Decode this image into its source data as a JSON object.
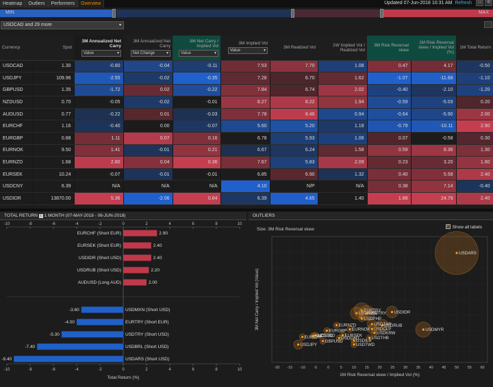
{
  "tabs": [
    {
      "label": "Heatmap"
    },
    {
      "label": "Outliers"
    },
    {
      "label": "Performers"
    },
    {
      "label": "Overview"
    }
  ],
  "updated": {
    "text": "Updated 07-Jun-2018 10:31 AM",
    "refresh": "Refresh"
  },
  "slider": {
    "min": "MIN",
    "max": "MAX"
  },
  "selector": {
    "label": "USDCAD and 29 more"
  },
  "columns": [
    {
      "label": "Currency"
    },
    {
      "label": "Spot"
    },
    {
      "label": "3M Annualized Net Carry",
      "dd": "Value"
    },
    {
      "label": "3M Annualized Net Carry",
      "dd": "Net Change"
    },
    {
      "label": "3M Net Carry / Implied Vol",
      "dd": "Value"
    },
    {
      "label": "3M Implied Vol",
      "dd": "Value"
    },
    {
      "label": "3M Realized Vol"
    },
    {
      "label": "1W Implied Vol / Realized Vol"
    },
    {
      "label": "3M Risk Reversal skew"
    },
    {
      "label": "1M Risk Reversal skew / Implied Vol (%)"
    },
    {
      "label": "1M Total Return"
    }
  ],
  "rows": [
    {
      "cur": "USDCAD",
      "spot": "1.30",
      "carry": "-0.80",
      "chg": "-0.04",
      "nciv": "-0.11",
      "iv": "7.53",
      "rv": "7.70",
      "ivrv": "1.08",
      "rr": "0.47",
      "rriv": "4.17",
      "tr": "-0.50"
    },
    {
      "cur": "USDJPY",
      "spot": "109.96",
      "carry": "-2.55",
      "chg": "-0.02",
      "nciv": "-0.35",
      "iv": "7.28",
      "rv": "6.70",
      "ivrv": "1.62",
      "rr": "-1.07",
      "rriv": "-11.68",
      "tr": "-1.10"
    },
    {
      "cur": "GBPUSD",
      "spot": "1.35",
      "carry": "-1.72",
      "chg": "0.02",
      "nciv": "-0.22",
      "iv": "7.84",
      "rv": "6.74",
      "ivrv": "2.02",
      "rr": "-0.40",
      "rriv": "-2.10",
      "tr": "-1.20"
    },
    {
      "cur": "NZDUSD",
      "spot": "0.70",
      "carry": "-0.05",
      "chg": "-0.02",
      "nciv": "-0.01",
      "iv": "8.27",
      "rv": "8.22",
      "ivrv": "1.94",
      "rr": "-0.59",
      "rriv": "-5.03",
      "tr": "0.20"
    },
    {
      "cur": "AUDUSD",
      "spot": "0.77",
      "carry": "-0.22",
      "chg": "0.01",
      "nciv": "-0.03",
      "iv": "7.78",
      "rv": "8.46",
      "ivrv": "0.94",
      "rr": "-0.64",
      "rriv": "-5.90",
      "tr": "2.00"
    },
    {
      "cur": "EURCHF",
      "spot": "1.16",
      "carry": "-0.40",
      "chg": "0.00",
      "nciv": "-0.07",
      "iv": "5.60",
      "rv": "5.20",
      "ivrv": "1.18",
      "rr": "-0.79",
      "rriv": "-10.11",
      "tr": "2.90"
    },
    {
      "cur": "EURGBP",
      "spot": "0.88",
      "carry": "1.11",
      "chg": "0.07",
      "nciv": "0.16",
      "iv": "6.78",
      "rv": "5.93",
      "ivrv": "1.06",
      "rr": "0.07",
      "rriv": "-0.58",
      "tr": "0.30"
    },
    {
      "cur": "EURNOK",
      "spot": "9.50",
      "carry": "1.41",
      "chg": "-0.01",
      "nciv": "0.21",
      "iv": "6.67",
      "rv": "6.24",
      "ivrv": "1.58",
      "rr": "0.59",
      "rriv": "8.36",
      "tr": "1.30"
    },
    {
      "cur": "EURNZD",
      "spot": "1.68",
      "carry": "2.80",
      "chg": "0.04",
      "nciv": "0.36",
      "iv": "7.67",
      "rv": "5.83",
      "ivrv": "2.09",
      "rr": "0.23",
      "rriv": "3.20",
      "tr": "1.80"
    },
    {
      "cur": "EURSEK",
      "spot": "10.24",
      "carry": "-0.07",
      "chg": "-0.01",
      "nciv": "-0.01",
      "iv": "6.85",
      "rv": "6.90",
      "ivrv": "1.32",
      "rr": "0.40",
      "rriv": "5.58",
      "tr": "2.40"
    },
    {
      "cur": "USDCNY",
      "spot": "6.39",
      "carry": "N/A",
      "chg": "N/A",
      "nciv": "N/A",
      "iv": "4.10",
      "rv": "N/P",
      "ivrv": "N/A",
      "rr": "0.38",
      "rriv": "7.14",
      "tr": "-0.40"
    },
    {
      "cur": "USDIDR",
      "spot": "13870.00",
      "carry": "5.36",
      "chg": "-2.06",
      "nciv": "0.84",
      "iv": "6.39",
      "rv": "4.65",
      "ivrv": "1.40",
      "rr": "1.88",
      "rriv": "24.79",
      "tr": "2.40"
    }
  ],
  "colors": {
    "pos": "#c0394b",
    "neg": "#2060c8",
    "orange": "#f0a020"
  },
  "totalReturn": {
    "header": "TOTAL RETURN",
    "period": "1 MONTH (07-MAY-2018 - 06-JUN-2018)",
    "xlabel": "Total Return (%)",
    "ticks": [
      "-10",
      "-8",
      "-6",
      "-4",
      "-2",
      "0",
      "2",
      "4",
      "6",
      "8",
      "10"
    ]
  },
  "outliers": {
    "header": "OUTLIERS",
    "size": "Size: 3M Risk Reversal skew",
    "showAll": "Show all labels",
    "xlabel": "1M Risk Reversal skew / Implied Vol (%)",
    "ylabel": "3M Net Carry / Implied Vol (Value)",
    "xticks": [
      "-20",
      "-15",
      "-10",
      "-5",
      "0",
      "5",
      "10",
      "15",
      "20",
      "25",
      "30",
      "35",
      "40",
      "45",
      "50",
      "55",
      "60"
    ]
  },
  "chart_data": [
    {
      "type": "bar",
      "title": "TOTAL RETURN 1 MONTH (07-MAY-2018 - 06-JUN-2018)",
      "xlabel": "Total Return (%)",
      "xlim": [
        -10,
        10
      ],
      "categories": [
        "EURCHF (Short EUR)",
        "EURSEK (Short EUR)",
        "USDIDR (Short USD)",
        "USDRUB (Short USD)",
        "AUDUSD (Long AUD)",
        "USDMXN (Short USD)",
        "EURTRY (Short EUR)",
        "USDTRY (Short USD)",
        "USDBRL (Short USD)",
        "USDARS (Short USD)"
      ],
      "values": [
        2.9,
        2.4,
        2.4,
        2.2,
        2.0,
        -3.6,
        -4.0,
        -5.3,
        -7.4,
        -9.4
      ],
      "labels": [
        "2.90",
        "2.40",
        "2.40",
        "2.20",
        "2.00",
        "-3.60",
        "-4.00",
        "-5.30",
        "-7.40",
        "-9.40"
      ]
    },
    {
      "type": "scatter",
      "title": "OUTLIERS",
      "xlabel": "1M Risk Reversal skew / Implied Vol (%)",
      "ylabel": "3M Net Carry / Implied Vol (Value)",
      "xlim": [
        -22,
        62
      ],
      "points": [
        {
          "name": "USDARS",
          "x": 50,
          "y": 3.0,
          "size": 7
        },
        {
          "name": "USDMYR",
          "x": 37,
          "y": 0.2,
          "size": 2.5
        },
        {
          "name": "USDIDR",
          "x": 24.8,
          "y": 0.84,
          "size": 1.9
        },
        {
          "name": "USDRUB",
          "x": 21,
          "y": 0.35,
          "size": 2
        },
        {
          "name": "USDTRY",
          "x": 15,
          "y": 0.8,
          "size": 2.5
        },
        {
          "name": "EURTRY",
          "x": 13,
          "y": 0.9,
          "size": 2.5
        },
        {
          "name": "USDZAR",
          "x": 17,
          "y": 0.4,
          "size": 1.5
        },
        {
          "name": "USDPHP",
          "x": 13,
          "y": 0.6,
          "size": 1
        },
        {
          "name": "USDCLP",
          "x": 17,
          "y": 0.22,
          "size": 1.5
        },
        {
          "name": "USDMXN",
          "x": 11,
          "y": 0.8,
          "size": 2
        },
        {
          "name": "USDKRW",
          "x": 18,
          "y": 0.08,
          "size": 1
        },
        {
          "name": "USDTHB",
          "x": 16,
          "y": -0.1,
          "size": 1
        },
        {
          "name": "USDILS",
          "x": 10,
          "y": -0.2,
          "size": 1
        },
        {
          "name": "USDTWD",
          "x": 10,
          "y": -0.35,
          "size": 1
        },
        {
          "name": "EURNZD",
          "x": 3.2,
          "y": 0.36,
          "size": 1
        },
        {
          "name": "EURGBP",
          "x": -0.6,
          "y": 0.16,
          "size": 1
        },
        {
          "name": "EURNOK",
          "x": 8.4,
          "y": 0.21,
          "size": 1
        },
        {
          "name": "EURSEK",
          "x": 5.6,
          "y": -0.01,
          "size": 1
        },
        {
          "name": "USDCAD",
          "x": 4.2,
          "y": -0.11,
          "size": 1
        },
        {
          "name": "GBPUSD",
          "x": -2.1,
          "y": -0.22,
          "size": 1
        },
        {
          "name": "AUDUSD",
          "x": -5.9,
          "y": -0.03,
          "size": 1
        },
        {
          "name": "NZDUSD",
          "x": -5.0,
          "y": -0.01,
          "size": 1
        },
        {
          "name": "EURCHF",
          "x": -10.1,
          "y": -0.07,
          "size": 1
        },
        {
          "name": "USDJPY",
          "x": -11.7,
          "y": -0.35,
          "size": 1.5
        }
      ]
    }
  ]
}
